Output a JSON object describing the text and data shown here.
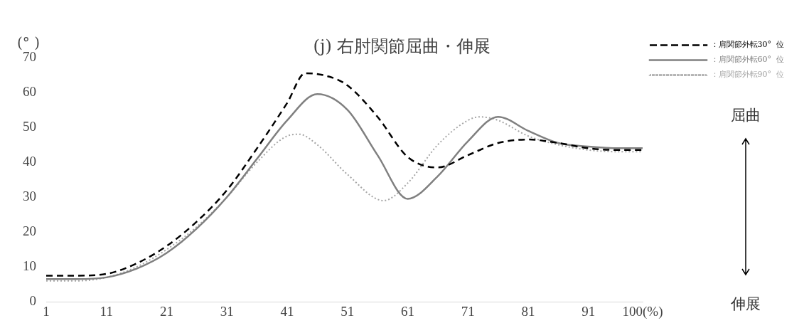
{
  "chart_data": {
    "type": "line",
    "title": "(j) 右肘関節屈曲・伸展",
    "ylabel": "(°  )",
    "annotations": [
      "屈曲",
      "伸展"
    ],
    "xlim": [
      1,
      100
    ],
    "xticks": [
      1,
      11,
      21,
      31,
      41,
      51,
      61,
      71,
      81,
      {
        "value": 91,
        "label": "91"
      },
      {
        "value": 100,
        "label": "100(%)"
      }
    ],
    "ylim": [
      0,
      70
    ],
    "yticks": [
      0,
      10,
      20,
      30,
      40,
      50,
      60,
      70
    ],
    "grid": false,
    "legend": "top right",
    "marker": "none",
    "series": [
      {
        "name": "：肩関節外転30°  位",
        "color": "#000000",
        "line_style": "dashed",
        "x": [
          1,
          6,
          11,
          16,
          21,
          26,
          31,
          36,
          41,
          44,
          48,
          51,
          56,
          61,
          66,
          71,
          76,
          81,
          86,
          91,
          96,
          100
        ],
        "values": [
          7.5,
          7.5,
          8,
          11,
          16,
          23,
          32,
          44,
          57,
          65.5,
          64.5,
          62,
          53,
          41.5,
          38.5,
          42,
          45.5,
          46.5,
          45.5,
          44,
          43.5,
          43.5
        ]
      },
      {
        "name": "：肩関節外転60°  位",
        "color": "#808080",
        "line_style": "solid",
        "x": [
          1,
          6,
          11,
          16,
          21,
          26,
          31,
          36,
          41,
          46,
          51,
          56,
          61,
          66,
          71,
          76,
          81,
          86,
          91,
          96,
          100
        ],
        "values": [
          6.5,
          6.5,
          7,
          9.5,
          14,
          21,
          30,
          41,
          52,
          59.5,
          55,
          42,
          29.5,
          36,
          46,
          53,
          49,
          45.5,
          44.5,
          44,
          44
        ]
      },
      {
        "name": "：肩関節外転90°  位",
        "color": "#a6a6a6",
        "line_style": "dotted",
        "x": [
          1,
          6,
          11,
          16,
          21,
          26,
          31,
          36,
          41,
          43,
          46,
          51,
          57,
          61,
          66,
          71,
          73,
          76,
          81,
          86,
          91,
          96,
          100
        ],
        "values": [
          6,
          6,
          7,
          10,
          15,
          21.5,
          30,
          40,
          47.5,
          48,
          45,
          36.5,
          29,
          34,
          45,
          52,
          53,
          52,
          47.5,
          45,
          43.5,
          43,
          43
        ]
      }
    ]
  }
}
